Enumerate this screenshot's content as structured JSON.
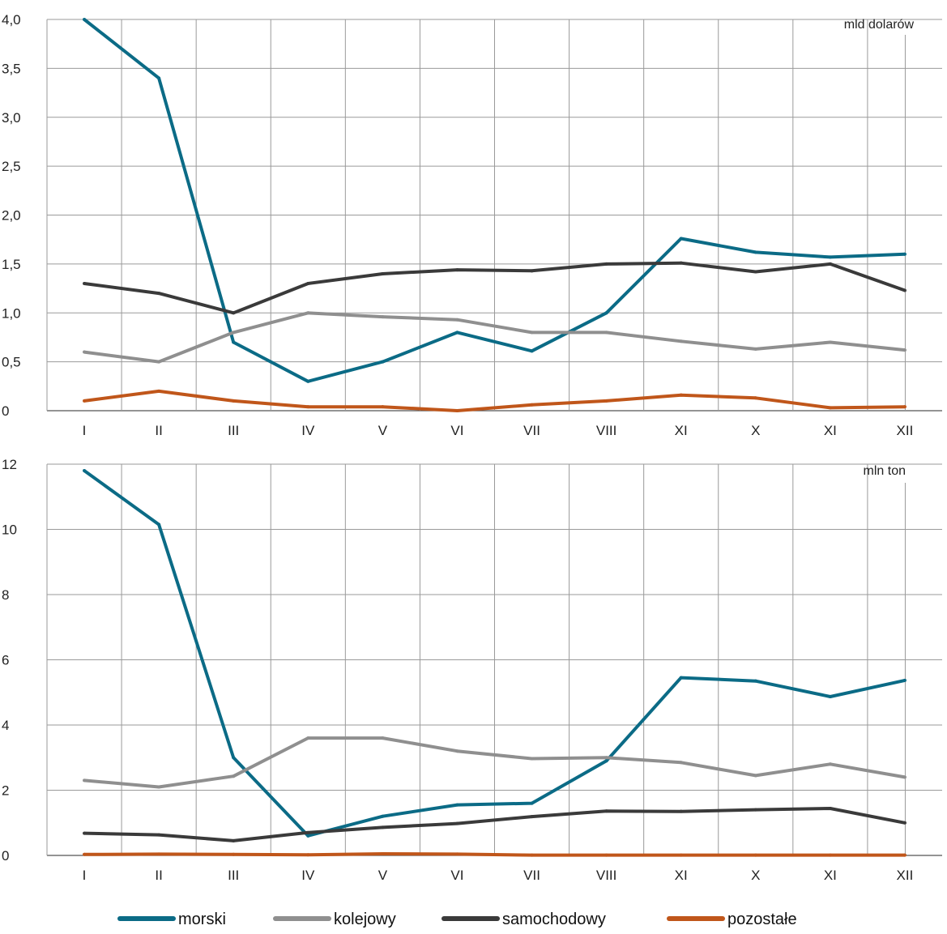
{
  "chart_data": [
    {
      "type": "line",
      "unit_label": "mld dolarów",
      "categories": [
        "I",
        "II",
        "III",
        "IV",
        "V",
        "VI",
        "VII",
        "VIII",
        "XI",
        "X",
        "XI",
        "XII"
      ],
      "ylim": [
        0,
        4.0
      ],
      "yticks": [
        "0",
        "0,5",
        "1,0",
        "1,5",
        "2,0",
        "2,5",
        "3,0",
        "3,5",
        "4,0"
      ],
      "ytick_values": [
        0,
        0.5,
        1.0,
        1.5,
        2.0,
        2.5,
        3.0,
        3.5,
        4.0
      ],
      "grid": true,
      "series": [
        {
          "name": "morski",
          "color": "#0b6b86",
          "values": [
            4.0,
            3.4,
            0.7,
            0.3,
            0.5,
            0.8,
            0.61,
            1.0,
            1.76,
            1.62,
            1.57,
            1.6
          ]
        },
        {
          "name": "kolejowy",
          "color": "#8f8f8f",
          "values": [
            0.6,
            0.5,
            0.8,
            1.0,
            0.96,
            0.93,
            0.8,
            0.8,
            0.71,
            0.63,
            0.7,
            0.62
          ]
        },
        {
          "name": "samochodowy",
          "color": "#3a3a3a",
          "values": [
            1.3,
            1.2,
            1.0,
            1.3,
            1.4,
            1.44,
            1.43,
            1.5,
            1.51,
            1.42,
            1.5,
            1.23
          ]
        },
        {
          "name": "pozostałe",
          "color": "#c0561a",
          "values": [
            0.1,
            0.2,
            0.1,
            0.04,
            0.04,
            0.0,
            0.06,
            0.1,
            0.16,
            0.13,
            0.03,
            0.04
          ]
        }
      ]
    },
    {
      "type": "line",
      "unit_label": "mln ton",
      "categories": [
        "I",
        "II",
        "III",
        "IV",
        "V",
        "VI",
        "VII",
        "VIII",
        "XI",
        "X",
        "XI",
        "XII"
      ],
      "ylim": [
        0,
        12
      ],
      "yticks": [
        "0",
        "2",
        "4",
        "6",
        "8",
        "10",
        "12"
      ],
      "ytick_values": [
        0,
        2,
        4,
        6,
        8,
        10,
        12
      ],
      "grid": true,
      "series": [
        {
          "name": "morski",
          "color": "#0b6b86",
          "values": [
            11.8,
            10.15,
            3.0,
            0.6,
            1.2,
            1.55,
            1.6,
            2.9,
            5.45,
            5.35,
            4.87,
            5.37
          ]
        },
        {
          "name": "kolejowy",
          "color": "#8f8f8f",
          "values": [
            2.3,
            2.1,
            2.43,
            3.6,
            3.6,
            3.2,
            2.97,
            3.0,
            2.85,
            2.45,
            2.8,
            2.4
          ]
        },
        {
          "name": "samochodowy",
          "color": "#3a3a3a",
          "values": [
            0.68,
            0.63,
            0.45,
            0.7,
            0.86,
            0.98,
            1.19,
            1.36,
            1.35,
            1.4,
            1.44,
            1.0
          ]
        },
        {
          "name": "pozostałe",
          "color": "#c0561a",
          "values": [
            0.03,
            0.04,
            0.03,
            0.02,
            0.05,
            0.04,
            0.01,
            0.01,
            0.01,
            0.01,
            0.01,
            0.01
          ]
        }
      ]
    }
  ],
  "legend": {
    "placement": "bottom",
    "items": [
      {
        "label": "morski",
        "color": "#0b6b86"
      },
      {
        "label": "kolejowy",
        "color": "#8f8f8f"
      },
      {
        "label": "samochodowy",
        "color": "#3a3a3a"
      },
      {
        "label": "pozostałe",
        "color": "#c0561a"
      }
    ]
  }
}
